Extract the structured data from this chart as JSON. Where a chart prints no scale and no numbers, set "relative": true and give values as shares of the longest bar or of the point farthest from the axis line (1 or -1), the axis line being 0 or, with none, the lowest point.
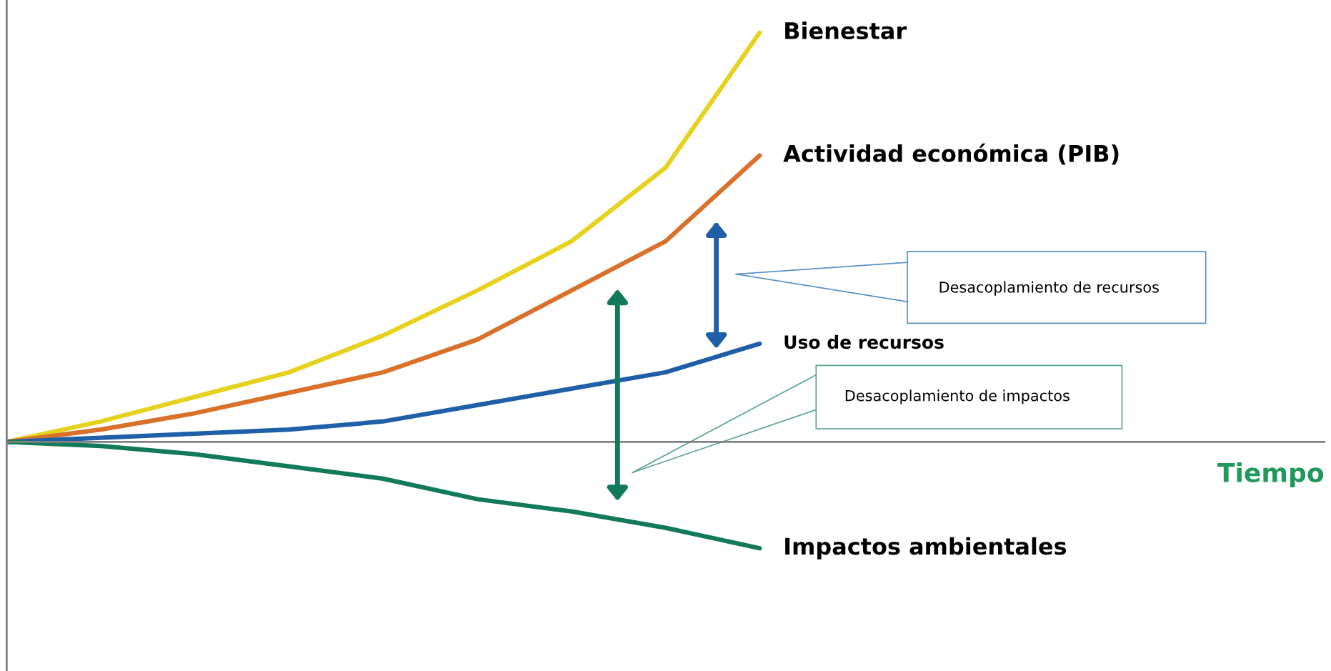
{
  "chart_data": {
    "type": "line",
    "relative": true,
    "xlabel": "Tiempo",
    "legend": false,
    "marker": "none",
    "line_style": "solid",
    "categories": [
      null,
      null,
      null,
      null,
      null,
      null,
      null,
      null,
      null,
      null,
      null,
      null,
      null,
      null,
      null
    ],
    "series": [
      {
        "name": "Bienestar",
        "color": "#e6d21e",
        "values": [
          0,
          0.05,
          0.11,
          0.17,
          0.26,
          0.37,
          0.49,
          0.67,
          1.0,
          null,
          null,
          null,
          null,
          null,
          null
        ]
      },
      {
        "name": "Actividad económica (PIB)",
        "color": "#d9712b",
        "values": [
          0,
          0.03,
          0.07,
          0.12,
          0.17,
          0.25,
          0.37,
          0.49,
          0.7,
          null,
          null,
          null,
          null,
          null,
          null
        ]
      },
      {
        "name": "Uso de recursos",
        "color": "#1f5fa8",
        "values": [
          0,
          0.01,
          0.02,
          0.03,
          0.05,
          0.09,
          0.13,
          0.17,
          0.24,
          null,
          null,
          null,
          null,
          null,
          null
        ]
      },
      {
        "name": "Impactos ambientales",
        "color": "#127a5a",
        "values": [
          0,
          -0.01,
          -0.03,
          -0.06,
          -0.09,
          -0.14,
          -0.17,
          -0.21,
          -0.26,
          null,
          null,
          null,
          null,
          null,
          null
        ]
      }
    ],
    "annotations": [
      "Desacoplamiento de recursos",
      "Desacoplamiento de impactos"
    ]
  }
}
